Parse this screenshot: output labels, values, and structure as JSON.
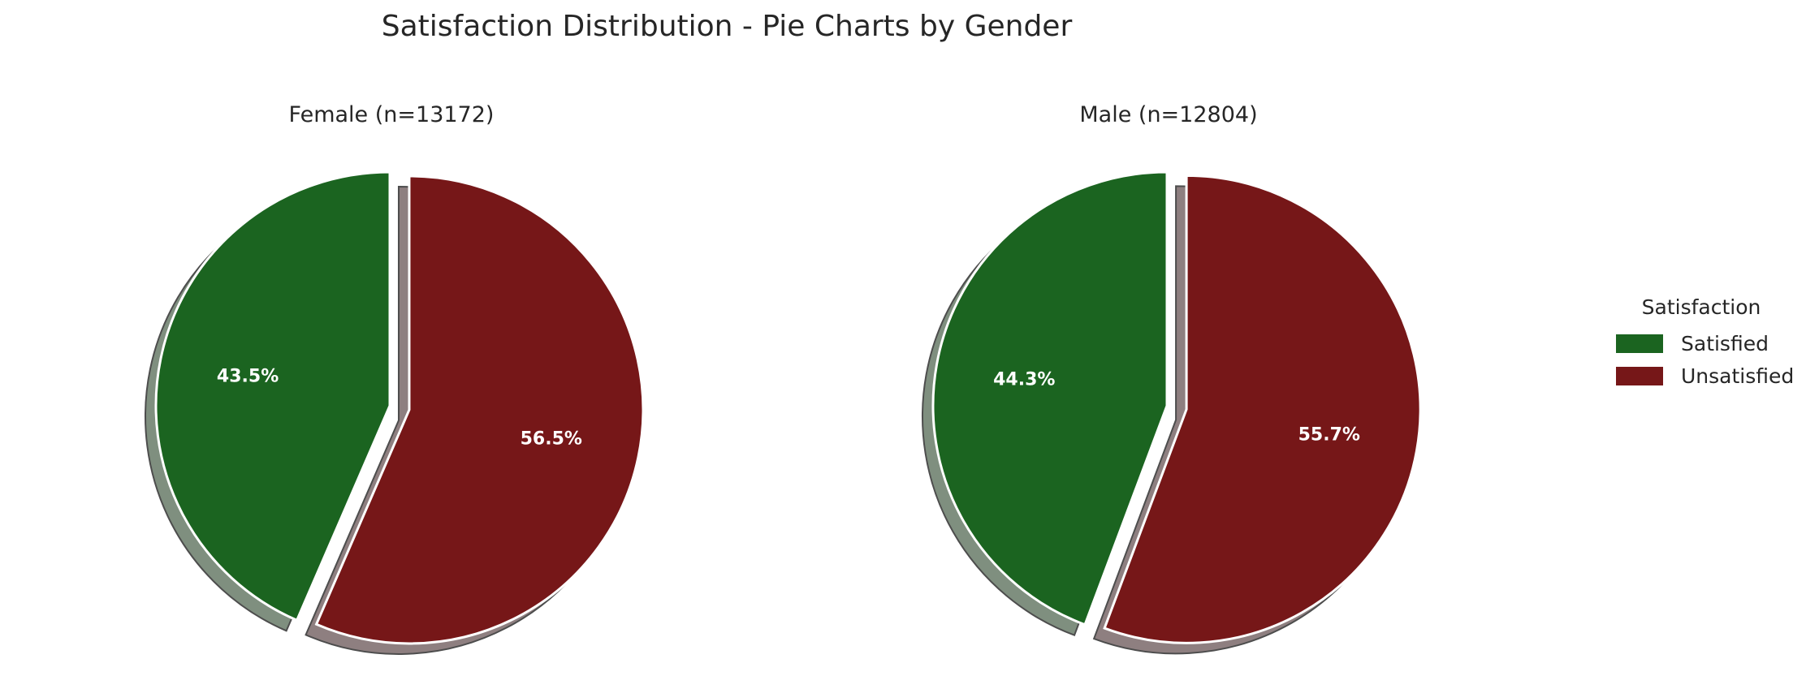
{
  "title": "Satisfaction Distribution - Pie Charts by Gender",
  "legend": {
    "title": "Satisfaction",
    "placement": "right",
    "items": [
      {
        "label": "Satisfied",
        "color": "#1b6420"
      },
      {
        "label": "Unsatisfied",
        "color": "#761718"
      }
    ]
  },
  "chart_data": [
    {
      "type": "pie",
      "title": "Female (n=13172)",
      "start_angle": "top, counter-clockwise",
      "shadow": true,
      "exploded": "Unsatisfied",
      "slices": [
        {
          "label": "Satisfied",
          "value": 43.5,
          "display": "43.5%",
          "color": "#1b6420"
        },
        {
          "label": "Unsatisfied",
          "value": 56.5,
          "display": "56.5%",
          "color": "#761718"
        }
      ]
    },
    {
      "type": "pie",
      "title": "Male (n=12804)",
      "start_angle": "top, counter-clockwise",
      "shadow": true,
      "exploded": "Unsatisfied",
      "slices": [
        {
          "label": "Satisfied",
          "value": 44.3,
          "display": "44.3%",
          "color": "#1b6420"
        },
        {
          "label": "Unsatisfied",
          "value": 55.7,
          "display": "55.7%",
          "color": "#761718"
        }
      ]
    }
  ]
}
